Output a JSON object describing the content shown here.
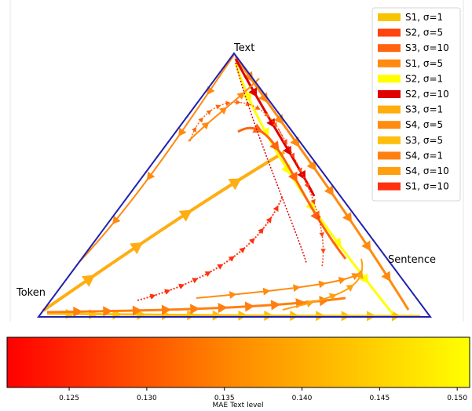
{
  "chart_data": [
    {
      "type": "ternary",
      "vertex_labels": {
        "top": "Text",
        "left": "Token",
        "right": "Sentence"
      },
      "series": [
        {
          "name": "S1, σ=1",
          "color": "#f8c400"
        },
        {
          "name": "S2, σ=5",
          "color": "#ff4410"
        },
        {
          "name": "S3, σ=10",
          "color": "#ff6410"
        },
        {
          "name": "S1, σ=5",
          "color": "#ff8a10"
        },
        {
          "name": "S2, σ=1",
          "color": "#ffff00"
        },
        {
          "name": "S2, σ=10",
          "color": "#e00000"
        },
        {
          "name": "S3, σ=1",
          "color": "#ffad10"
        },
        {
          "name": "S4, σ=5",
          "color": "#ff8c10"
        },
        {
          "name": "S3, σ=5",
          "color": "#ffbe10"
        },
        {
          "name": "S4, σ=1",
          "color": "#ff8010"
        },
        {
          "name": "S4, σ=10",
          "color": "#ffa010"
        },
        {
          "name": "S1, σ=10",
          "color": "#ff3010"
        }
      ],
      "legend_position": "top-right",
      "grid": false
    },
    {
      "type": "colorbar",
      "xlabel": "MAE Text level",
      "range": [
        0.121,
        0.1508
      ],
      "ticks": [
        "0.125",
        "0.130",
        "0.135",
        "0.140",
        "0.145",
        "0.150"
      ],
      "tick_values": [
        0.125,
        0.13,
        0.135,
        0.14,
        0.145,
        0.15
      ],
      "color_start": "#ff0000",
      "color_end": "#ffff00"
    }
  ]
}
